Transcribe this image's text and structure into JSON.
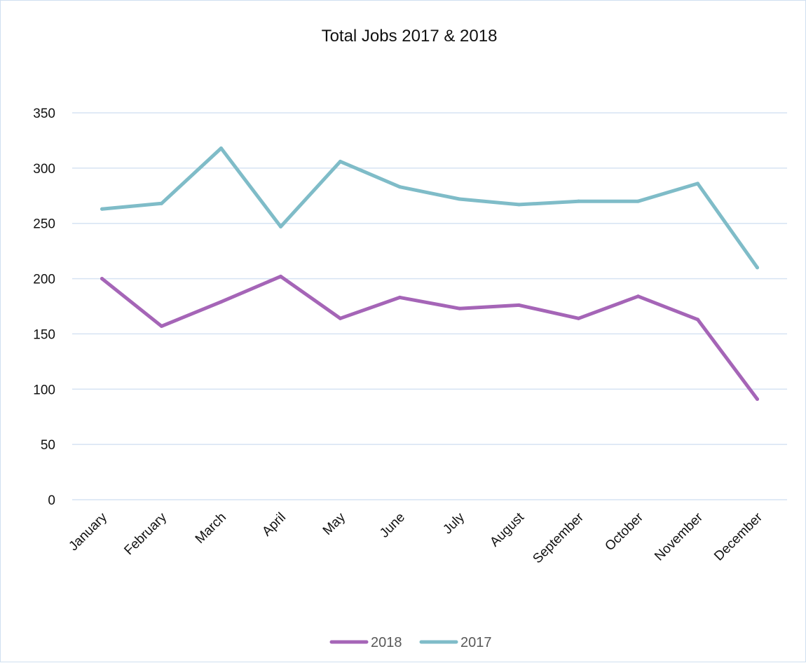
{
  "chart_data": {
    "type": "line",
    "title": "Total Jobs 2017 & 2018",
    "xlabel": "",
    "ylabel": "",
    "categories": [
      "January",
      "February",
      "March",
      "April",
      "May",
      "June",
      "July",
      "August",
      "September",
      "October",
      "November",
      "December"
    ],
    "series": [
      {
        "name": "2018",
        "color": "#a565b7",
        "values": [
          200,
          157,
          179,
          202,
          164,
          183,
          173,
          176,
          164,
          184,
          163,
          91
        ]
      },
      {
        "name": "2017",
        "color": "#7fbcc8",
        "values": [
          263,
          268,
          318,
          247,
          306,
          283,
          272,
          267,
          270,
          270,
          286,
          210
        ]
      }
    ],
    "ylim": [
      0,
      350
    ],
    "yticks": [
      0,
      50,
      100,
      150,
      200,
      250,
      300,
      350
    ],
    "grid": true,
    "legend_position": "bottom"
  }
}
